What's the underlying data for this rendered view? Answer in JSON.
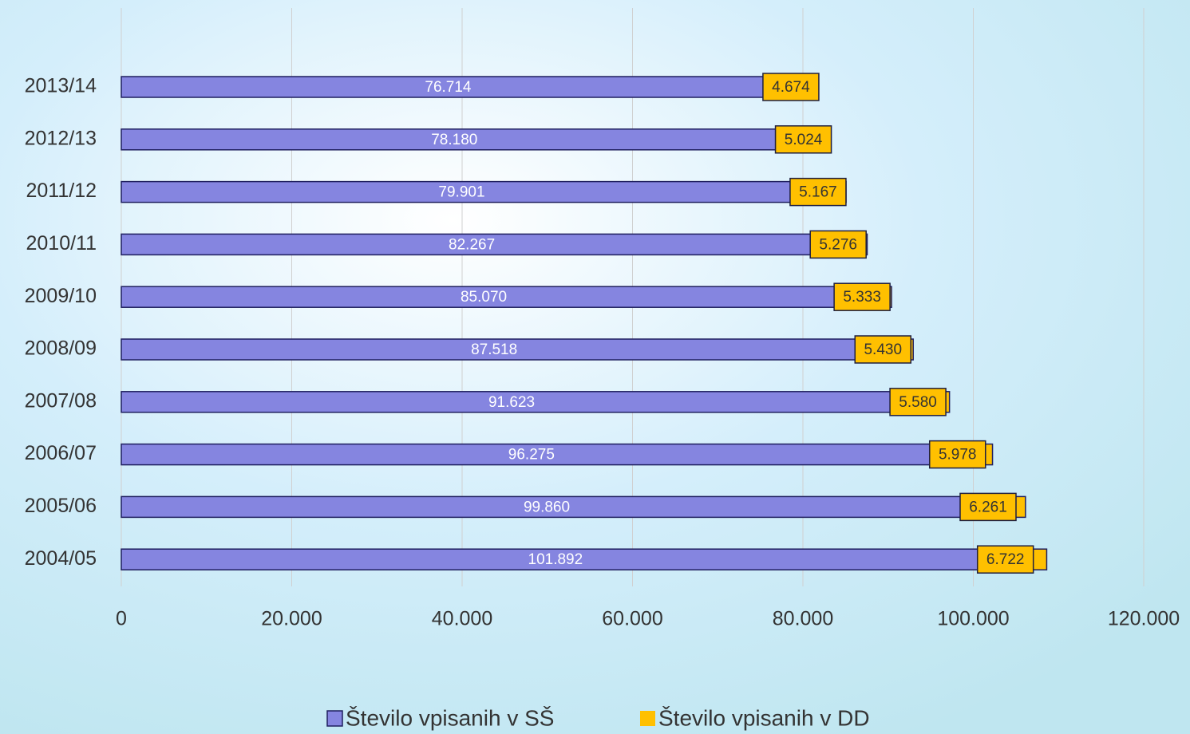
{
  "chart_data": {
    "type": "bar",
    "orientation": "horizontal",
    "stacked": true,
    "categories": [
      "2013/14",
      "2012/13",
      "2011/12",
      "2010/11",
      "2009/10",
      "2008/09",
      "2007/08",
      "2006/07",
      "2005/06",
      "2004/05"
    ],
    "series": [
      {
        "name": "Število vpisanih v SŠ",
        "color": "#8585e0",
        "values": [
          76714,
          78180,
          79901,
          82267,
          85070,
          87518,
          91623,
          96275,
          99860,
          101892
        ],
        "value_labels": [
          "76.714",
          "78.180",
          "79.901",
          "82.267",
          "85.070",
          "87.518",
          "91.623",
          "96.275",
          "99.860",
          "101.892"
        ]
      },
      {
        "name": "Število vpisanih v DD",
        "color": "#ffc000",
        "values": [
          4674,
          5024,
          5167,
          5276,
          5333,
          5430,
          5580,
          5978,
          6261,
          6722
        ],
        "value_labels": [
          "4.674",
          "5.024",
          "5.167",
          "5.276",
          "5.333",
          "5.430",
          "5.580",
          "5.978",
          "6.261",
          "6.722"
        ]
      }
    ],
    "xlim": [
      0,
      120000
    ],
    "xticks": [
      0,
      {
        "value": 20000,
        "label": "20.000"
      },
      {
        "value": 40000,
        "label": "40.000"
      },
      {
        "value": 60000,
        "label": "60.000"
      },
      {
        "value": 80000,
        "label": "80.000"
      },
      {
        "value": 100000,
        "label": "100.000"
      },
      {
        "value": 120000,
        "label": "120.000"
      }
    ],
    "grid": true,
    "legend": "bottom"
  }
}
